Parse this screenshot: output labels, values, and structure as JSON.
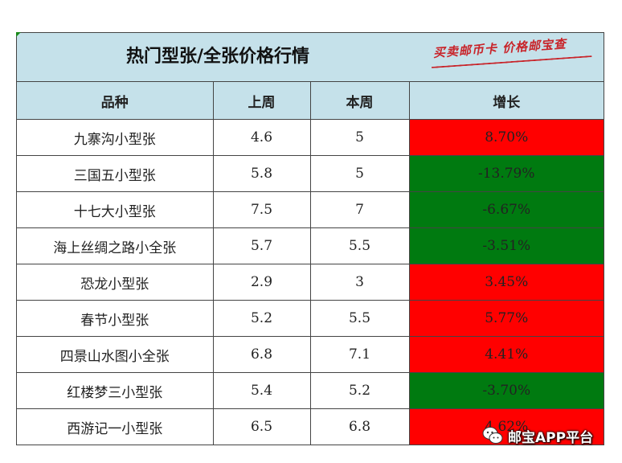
{
  "table": {
    "title": "热门型张/全张价格行情",
    "stamp_text": "买卖邮币卡 价格邮宝查",
    "headers": [
      "品种",
      "上周",
      "本周",
      "增长"
    ],
    "rows": [
      {
        "name": "九寨沟小型张",
        "last": "4.6",
        "this": "5",
        "growth": "8.70%",
        "trend": "up"
      },
      {
        "name": "三国五小型张",
        "last": "5.8",
        "this": "5",
        "growth": "-13.79%",
        "trend": "down"
      },
      {
        "name": "十七大小型张",
        "last": "7.5",
        "this": "7",
        "growth": "-6.67%",
        "trend": "down"
      },
      {
        "name": "海上丝绸之路小全张",
        "last": "5.7",
        "this": "5.5",
        "growth": "-3.51%",
        "trend": "down"
      },
      {
        "name": "恐龙小型张",
        "last": "2.9",
        "this": "3",
        "growth": "3.45%",
        "trend": "up"
      },
      {
        "name": "春节小型张",
        "last": "5.2",
        "this": "5.5",
        "growth": "5.77%",
        "trend": "up"
      },
      {
        "name": "四景山水图小全张",
        "last": "6.8",
        "this": "7.1",
        "growth": "4.41%",
        "trend": "up"
      },
      {
        "name": "红楼梦三小型张",
        "last": "5.4",
        "this": "5.2",
        "growth": "-3.70%",
        "trend": "down"
      },
      {
        "name": "西游记一小型张",
        "last": "6.5",
        "this": "6.8",
        "growth": "4.62%",
        "trend": "up"
      }
    ]
  },
  "colors": {
    "up": "#ff0000",
    "down": "#007a10",
    "header_bg": "#c5e1ea",
    "stamp": "#c8242a"
  },
  "watermark": {
    "icon": "wechat-icon",
    "text": "邮宝APP平台"
  }
}
